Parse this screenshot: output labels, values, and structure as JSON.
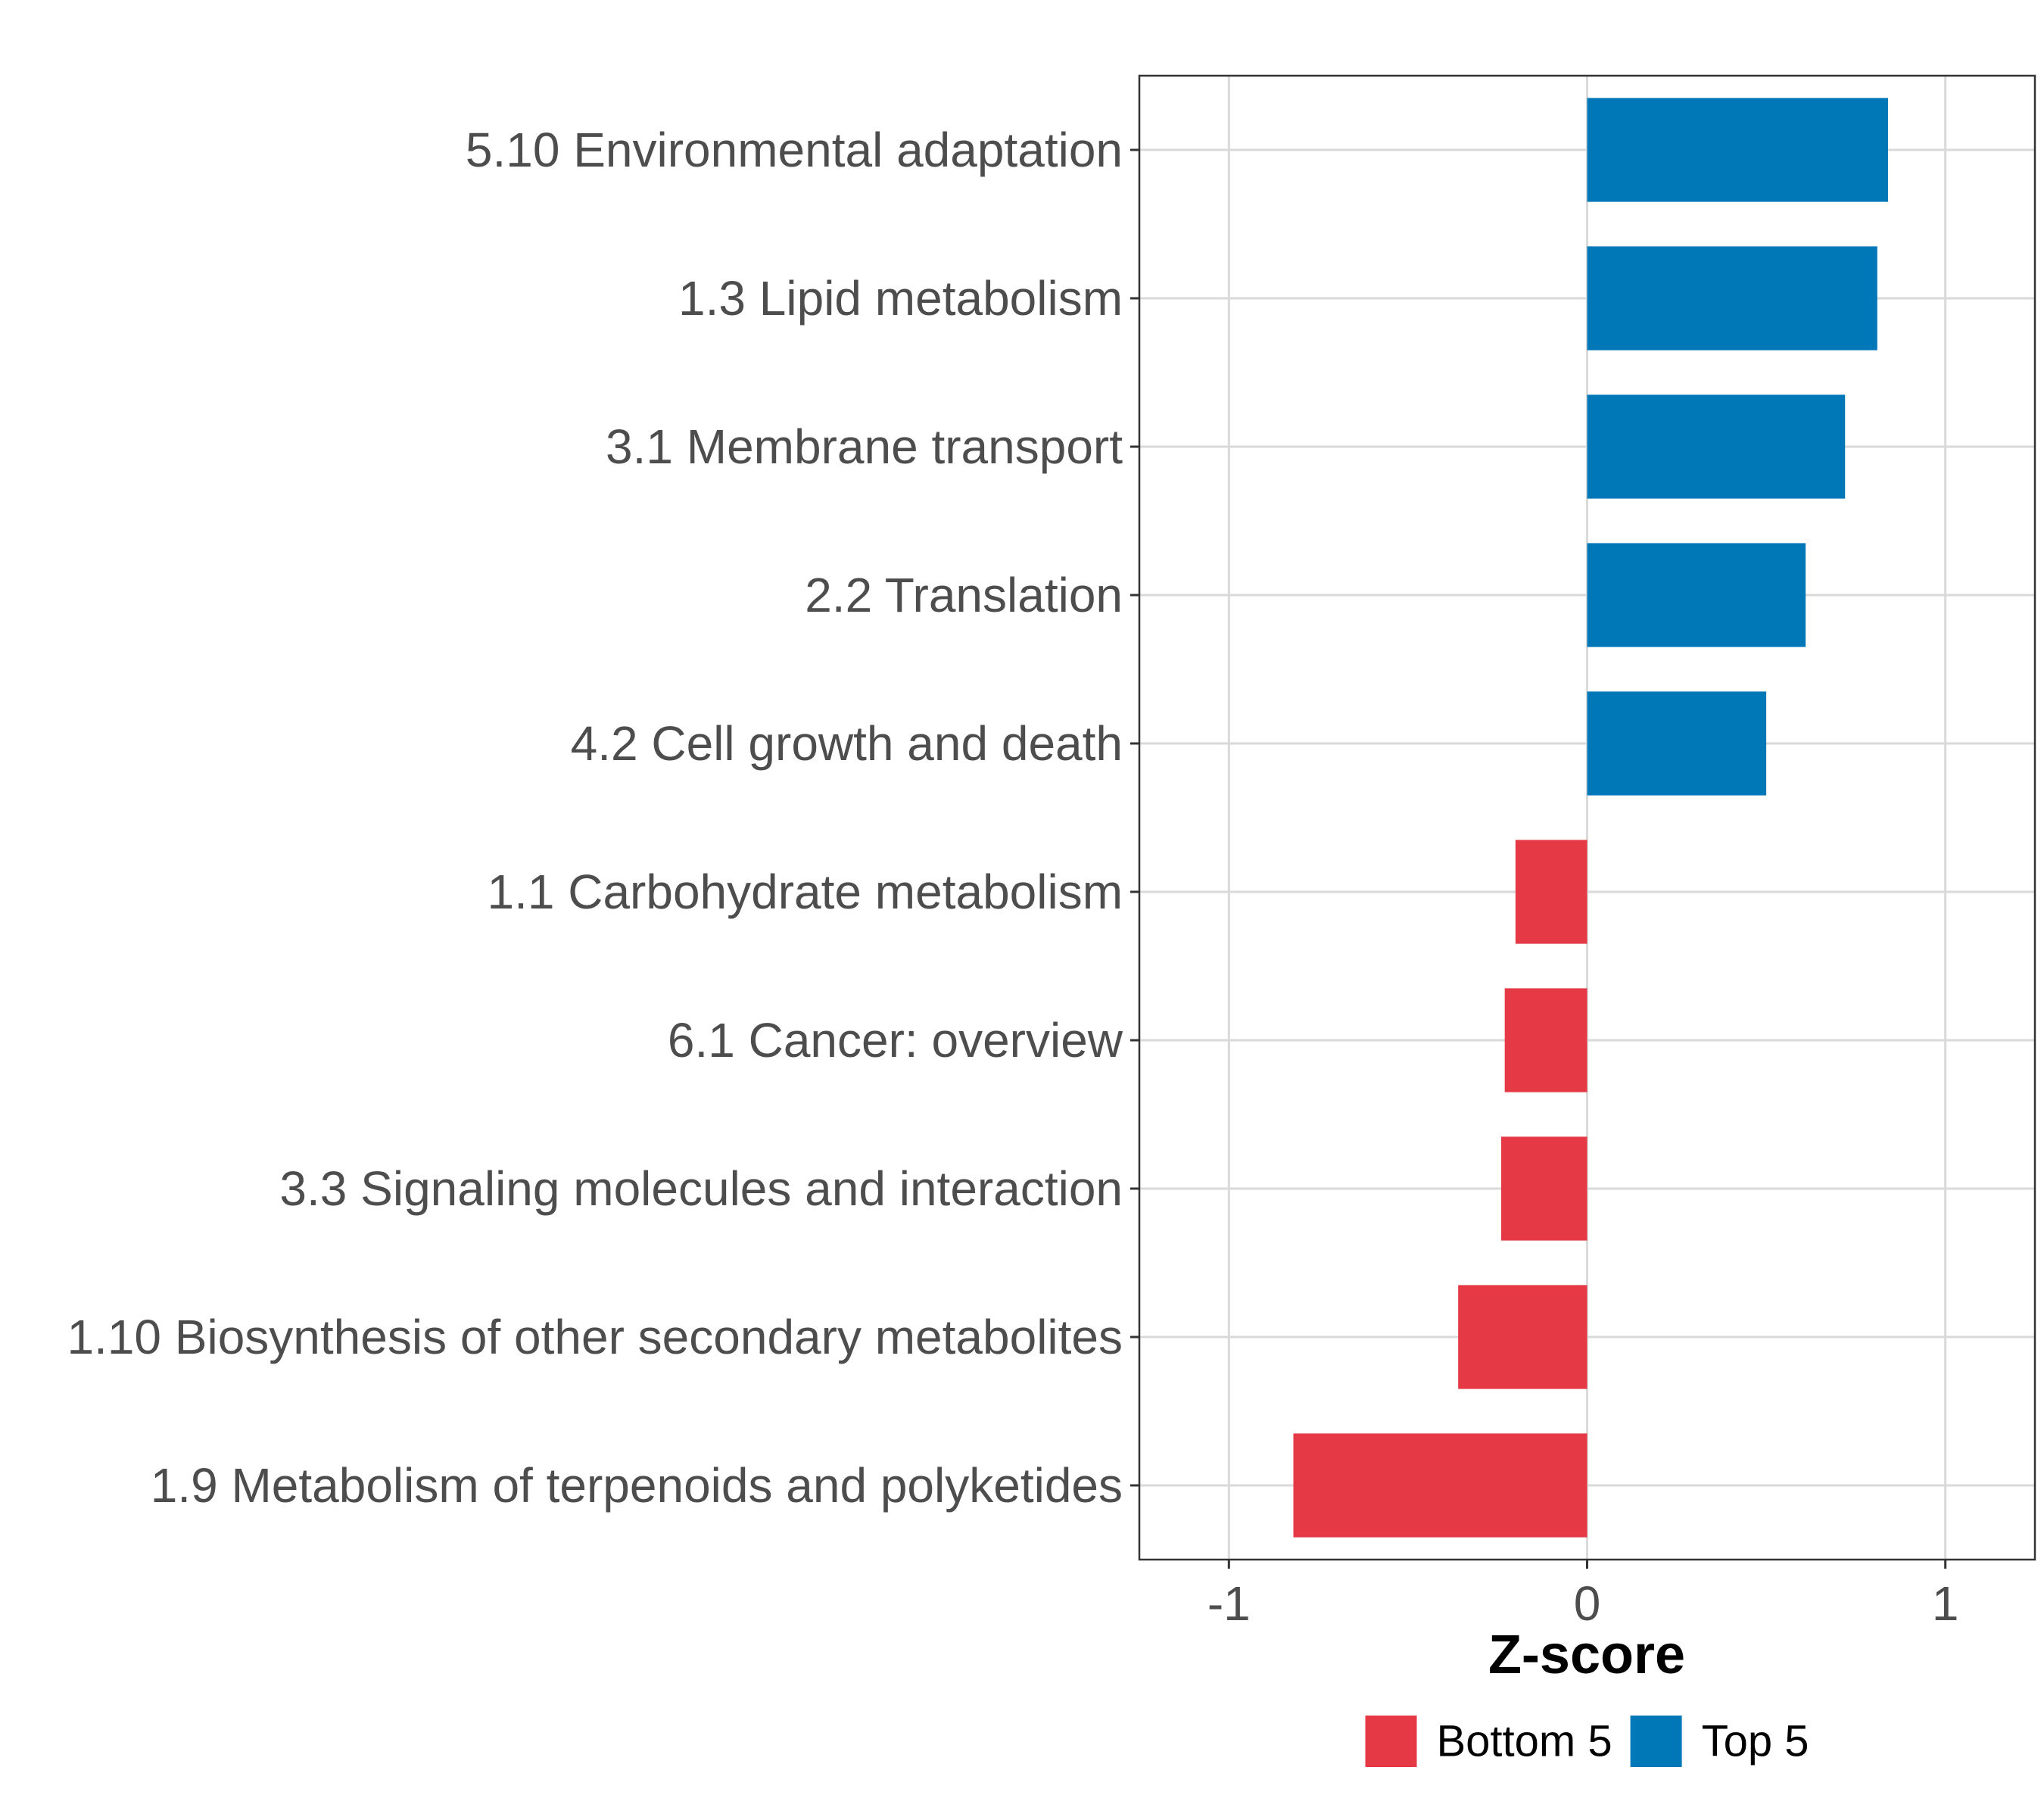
{
  "chart_data": {
    "type": "bar",
    "orientation": "horizontal",
    "categories": [
      "5.10 Environmental adaptation",
      "1.3 Lipid metabolism",
      "3.1 Membrane transport",
      "2.2 Translation",
      "4.2 Cell growth and death",
      "1.1 Carbohydrate metabolism",
      "6.1 Cancer: overview",
      "3.3 Signaling molecules and interaction",
      "1.10 Biosynthesis of other secondary metabolites",
      "1.9 Metabolism of terpenoids and polyketides"
    ],
    "values": [
      0.84,
      0.81,
      0.72,
      0.61,
      0.5,
      -0.2,
      -0.23,
      -0.24,
      -0.36,
      -0.82
    ],
    "groups": [
      "Top 5",
      "Top 5",
      "Top 5",
      "Top 5",
      "Top 5",
      "Bottom 5",
      "Bottom 5",
      "Bottom 5",
      "Bottom 5",
      "Bottom 5"
    ],
    "xlabel": "Z-score",
    "ylabel": "",
    "xlim": [
      -1.25,
      1.25
    ],
    "xticks": [
      -1,
      0,
      1
    ],
    "xtick_labels": [
      "-1",
      "0",
      "1"
    ],
    "grid": true,
    "legend": {
      "position": "bottom",
      "entries": [
        {
          "label": "Bottom 5",
          "color": "#e63946"
        },
        {
          "label": "Top 5",
          "color": "#0077b6"
        }
      ]
    },
    "colors": {
      "Top 5": "#0077b6",
      "Bottom 5": "#e63946"
    }
  }
}
